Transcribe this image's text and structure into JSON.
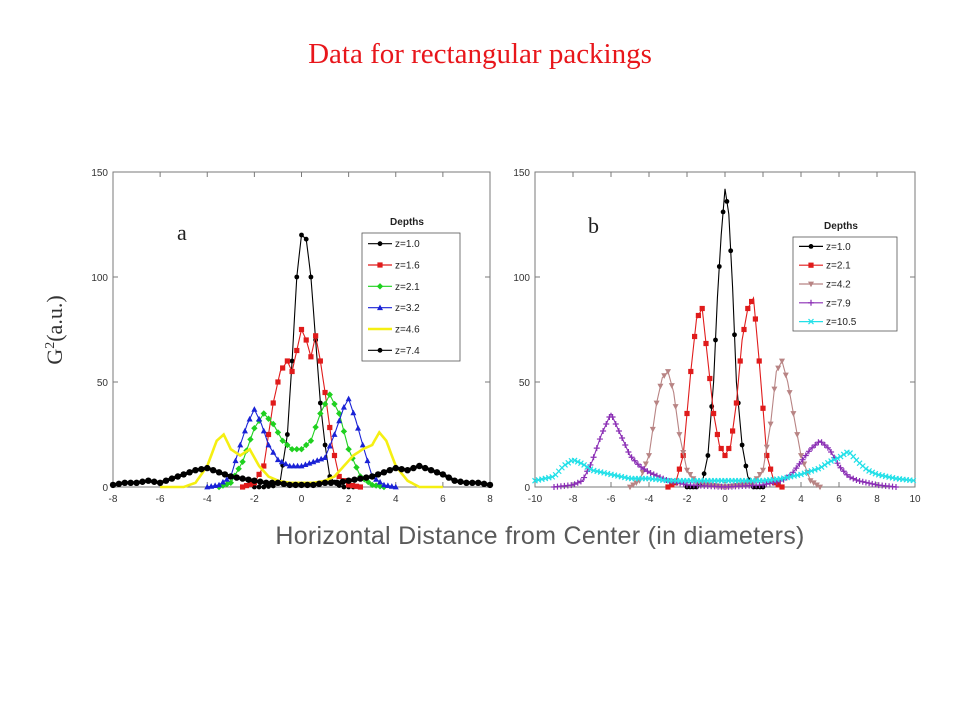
{
  "title": "Data for rectangular packings",
  "xlabel": "Horizontal Distance from Center (in diameters)",
  "chart_data": [
    {
      "type": "line",
      "panel_label": "a",
      "ylabel": "G2(a.u.)",
      "xlim": [
        -8,
        8
      ],
      "ylim": [
        0,
        150
      ],
      "xticks": [
        -8,
        -6,
        -4,
        -2,
        0,
        2,
        4,
        6,
        8
      ],
      "yticks": [
        0,
        50,
        100,
        150
      ],
      "legend_title": "Depths",
      "legend_position": "top-right",
      "series": [
        {
          "name": "z=1.0",
          "color": "#000000",
          "marker": "circle",
          "x": [
            -2,
            -1.6,
            -1.2,
            -0.9,
            -0.6,
            -0.4,
            -0.2,
            0,
            0.2,
            0.4,
            0.6,
            0.8,
            1.0,
            1.2,
            1.5,
            1.8,
            2.2
          ],
          "y": [
            0,
            0,
            0.5,
            3,
            25,
            60,
            100,
            120,
            118,
            100,
            70,
            40,
            20,
            5,
            1,
            0,
            0
          ]
        },
        {
          "name": "z=1.6",
          "color": "#e01b1b",
          "marker": "square",
          "x": [
            -2.5,
            -2,
            -1.6,
            -1.2,
            -0.9,
            -0.6,
            -0.4,
            -0.2,
            0,
            0.2,
            0.4,
            0.6,
            0.8,
            1.0,
            1.3,
            1.6,
            2.0,
            2.5
          ],
          "y": [
            0,
            2,
            10,
            40,
            55,
            60,
            55,
            65,
            75,
            70,
            62,
            72,
            60,
            45,
            20,
            5,
            1,
            0
          ]
        },
        {
          "name": "z=2.1",
          "color": "#1fd11f",
          "marker": "diamond",
          "x": [
            -3.5,
            -3,
            -2.5,
            -2,
            -1.6,
            -1.2,
            -0.8,
            -0.4,
            0,
            0.4,
            0.8,
            1.2,
            1.6,
            2.0,
            2.5,
            3.0,
            3.5
          ],
          "y": [
            0,
            2,
            12,
            28,
            35,
            30,
            22,
            18,
            18,
            22,
            35,
            44,
            35,
            18,
            5,
            1,
            0
          ]
        },
        {
          "name": "z=3.2",
          "color": "#1a22d6",
          "marker": "triangle",
          "x": [
            -4,
            -3.5,
            -3,
            -2.6,
            -2.3,
            -2,
            -1.7,
            -1.4,
            -1,
            -0.5,
            0,
            0.5,
            1,
            1.4,
            1.8,
            2.0,
            2.3,
            2.6,
            3.0,
            3.5,
            4.0
          ],
          "y": [
            0,
            1,
            5,
            20,
            30,
            37,
            30,
            20,
            13,
            10,
            10,
            12,
            14,
            25,
            38,
            42,
            32,
            20,
            5,
            1,
            0
          ]
        },
        {
          "name": "z=4.6",
          "color": "#f5ef12",
          "marker": "none",
          "x": [
            -6,
            -5,
            -4.5,
            -4,
            -3.6,
            -3.3,
            -3,
            -2.6,
            -2.2,
            -1.8,
            -1.4,
            -1,
            -0.5,
            0,
            0.5,
            1,
            1.4,
            1.8,
            2.2,
            2.6,
            3,
            3.3,
            3.6,
            4,
            4.5,
            5,
            6
          ],
          "y": [
            0,
            0,
            2,
            10,
            22,
            25,
            18,
            15,
            18,
            10,
            5,
            3,
            2,
            2,
            2,
            3,
            5,
            10,
            15,
            18,
            20,
            26,
            22,
            10,
            3,
            0,
            0
          ]
        },
        {
          "name": "z=7.4",
          "color": "#000000",
          "marker": "circle-bold",
          "x": [
            -8,
            -7.5,
            -7,
            -6.5,
            -6,
            -5.5,
            -5,
            -4.5,
            -4,
            -3.5,
            -3,
            -2.5,
            -2,
            -1.5,
            -1,
            -0.5,
            0,
            0.5,
            1,
            1.5,
            2,
            2.5,
            3,
            3.5,
            4,
            4.5,
            5,
            5.5,
            6,
            6.5,
            7,
            7.5,
            8
          ],
          "y": [
            1,
            2,
            2,
            3,
            2,
            4,
            6,
            8,
            9,
            7,
            5,
            4,
            3,
            2,
            2,
            1,
            1,
            1,
            2,
            2,
            3,
            4,
            5,
            7,
            9,
            8,
            10,
            8,
            6,
            3,
            2,
            2,
            1
          ]
        }
      ]
    },
    {
      "type": "line",
      "panel_label": "b",
      "ylabel": "",
      "xlim": [
        -10,
        10
      ],
      "ylim": [
        0,
        150
      ],
      "xticks": [
        -10,
        -8,
        -6,
        -4,
        -2,
        0,
        2,
        4,
        6,
        8,
        10
      ],
      "yticks": [
        0,
        50,
        100,
        150
      ],
      "legend_title": "Depths",
      "legend_position": "top-right",
      "series": [
        {
          "name": "z=1.0",
          "color": "#000000",
          "marker": "circle",
          "x": [
            -2,
            -1.5,
            -1.2,
            -0.9,
            -0.6,
            -0.4,
            -0.2,
            0,
            0.2,
            0.4,
            0.6,
            0.9,
            1.2,
            1.5,
            2
          ],
          "y": [
            0,
            0,
            2,
            15,
            50,
            90,
            120,
            142,
            130,
            95,
            50,
            20,
            5,
            0,
            0
          ]
        },
        {
          "name": "z=2.1",
          "color": "#e01b1b",
          "marker": "square",
          "x": [
            -3,
            -2.6,
            -2.2,
            -1.8,
            -1.5,
            -1.2,
            -0.9,
            -0.6,
            -0.3,
            0,
            0.3,
            0.6,
            0.9,
            1.2,
            1.5,
            1.8,
            2.2,
            2.6,
            3
          ],
          "y": [
            0,
            2,
            15,
            55,
            80,
            85,
            60,
            35,
            20,
            15,
            20,
            40,
            70,
            85,
            90,
            60,
            15,
            2,
            0
          ]
        },
        {
          "name": "z=4.2",
          "color": "#b88484",
          "marker": "triangle-down",
          "x": [
            -5,
            -4.5,
            -4,
            -3.6,
            -3.3,
            -3,
            -2.7,
            -2.4,
            -2,
            -1.5,
            0,
            1.5,
            2,
            2.4,
            2.7,
            3,
            3.3,
            3.6,
            4,
            4.5,
            5
          ],
          "y": [
            0,
            3,
            15,
            40,
            52,
            55,
            45,
            25,
            8,
            2,
            0,
            2,
            8,
            30,
            55,
            60,
            50,
            35,
            15,
            3,
            0
          ]
        },
        {
          "name": "z=7.9",
          "color": "#8b2fb5",
          "marker": "plus",
          "x": [
            -9,
            -8,
            -7.5,
            -7,
            -6.5,
            -6,
            -5.5,
            -5,
            -4.5,
            -4,
            -3.5,
            -3,
            -2,
            0,
            2,
            3,
            3.5,
            4,
            4.5,
            5,
            5.5,
            6,
            6.5,
            7,
            7.5,
            8,
            9
          ],
          "y": [
            0,
            1,
            3,
            12,
            25,
            35,
            25,
            15,
            10,
            7,
            5,
            3,
            1,
            0,
            1,
            3,
            6,
            12,
            18,
            22,
            18,
            10,
            5,
            3,
            2,
            1,
            0
          ]
        },
        {
          "name": "z=10.5",
          "color": "#22e0e8",
          "marker": "cross",
          "x": [
            -10,
            -9,
            -8.5,
            -8,
            -7.5,
            -7,
            -6,
            -5,
            -4,
            -3,
            -2,
            0,
            2,
            3,
            4,
            5,
            5.5,
            6,
            6.5,
            7,
            7.5,
            8,
            9,
            10
          ],
          "y": [
            3,
            5,
            10,
            13,
            11,
            8,
            6,
            4,
            4,
            3,
            3,
            3,
            3,
            4,
            6,
            9,
            12,
            14,
            17,
            12,
            8,
            6,
            4,
            3
          ]
        }
      ]
    }
  ]
}
